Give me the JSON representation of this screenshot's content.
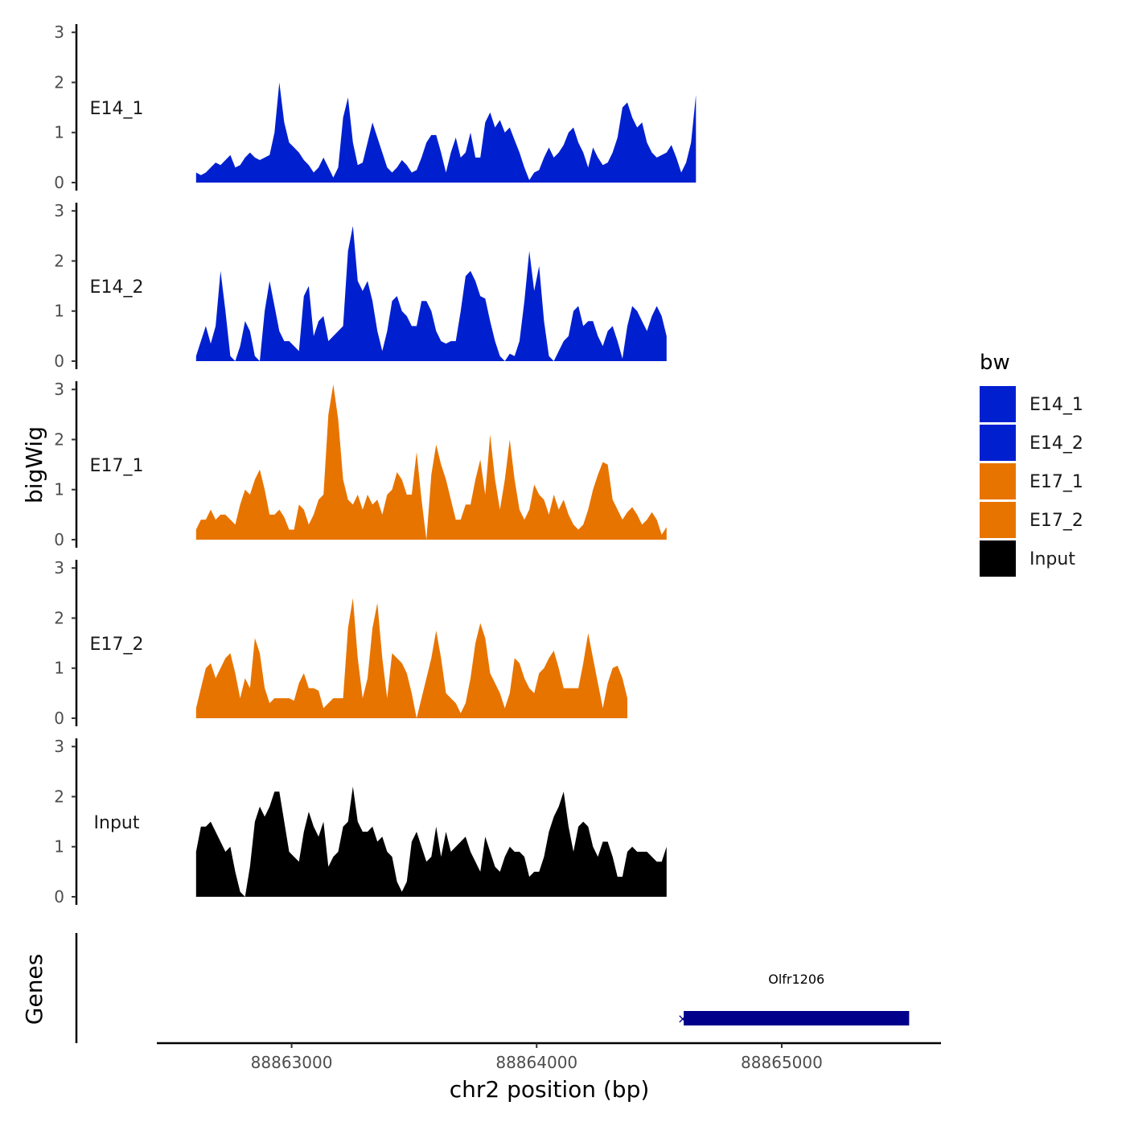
{
  "chart_data": {
    "type": "area",
    "xlabel": "chr2 position (bp)",
    "ylabel": "bigWig",
    "genes_label": "Genes",
    "xlim": [
      88862450,
      88865650
    ],
    "x_ticks": [
      88863000,
      88864000,
      88865000
    ],
    "x_tick_labels": [
      "88863000",
      "88864000",
      "88865000"
    ],
    "ylim": [
      0,
      3.1
    ],
    "y_ticks": [
      0,
      1,
      2,
      3
    ],
    "y_tick_labels": [
      "0",
      "1",
      "2",
      "3"
    ],
    "series_x_start": 88862610,
    "series_x_step": 20,
    "tracks": [
      {
        "name": "E14_1",
        "color": "#0020D0",
        "values": [
          0.2,
          0.15,
          0.2,
          0.3,
          0.4,
          0.35,
          0.45,
          0.55,
          0.3,
          0.35,
          0.5,
          0.6,
          0.5,
          0.45,
          0.5,
          0.55,
          1.0,
          2.0,
          1.2,
          0.8,
          0.7,
          0.6,
          0.45,
          0.35,
          0.2,
          0.3,
          0.5,
          0.3,
          0.1,
          0.3,
          1.3,
          1.7,
          0.8,
          0.35,
          0.4,
          0.8,
          1.2,
          0.9,
          0.6,
          0.3,
          0.2,
          0.3,
          0.45,
          0.35,
          0.2,
          0.25,
          0.5,
          0.8,
          0.95,
          0.95,
          0.6,
          0.2,
          0.6,
          0.9,
          0.5,
          0.6,
          1.0,
          0.5,
          0.5,
          1.2,
          1.4,
          1.1,
          1.25,
          1.0,
          1.1,
          0.85,
          0.6,
          0.3,
          0.05,
          0.2,
          0.25,
          0.5,
          0.7,
          0.5,
          0.6,
          0.75,
          1.0,
          1.1,
          0.8,
          0.6,
          0.3,
          0.7,
          0.5,
          0.35,
          0.4,
          0.6,
          0.9,
          1.5,
          1.6,
          1.3,
          1.1,
          1.2,
          0.8,
          0.6,
          0.5,
          0.55,
          0.6,
          0.75,
          0.5,
          0.2,
          0.4,
          0.8,
          1.75
        ]
      },
      {
        "name": "E14_2",
        "color": "#0020D0",
        "values": [
          0.1,
          0.4,
          0.7,
          0.35,
          0.7,
          1.8,
          1.0,
          0.1,
          0.0,
          0.3,
          0.8,
          0.6,
          0.1,
          0.0,
          1.0,
          1.6,
          1.1,
          0.6,
          0.4,
          0.4,
          0.3,
          0.2,
          1.3,
          1.5,
          0.5,
          0.8,
          0.9,
          0.4,
          0.5,
          0.6,
          0.7,
          2.2,
          2.7,
          1.6,
          1.4,
          1.6,
          1.2,
          0.6,
          0.2,
          0.6,
          1.2,
          1.3,
          1.0,
          0.9,
          0.7,
          0.7,
          1.2,
          1.2,
          1.0,
          0.6,
          0.4,
          0.35,
          0.4,
          0.4,
          1.0,
          1.7,
          1.8,
          1.6,
          1.3,
          1.25,
          0.8,
          0.4,
          0.1,
          0.0,
          0.15,
          0.1,
          0.4,
          1.2,
          2.2,
          1.4,
          1.9,
          0.8,
          0.1,
          0.0,
          0.2,
          0.4,
          0.5,
          1.0,
          1.1,
          0.7,
          0.8,
          0.8,
          0.5,
          0.3,
          0.6,
          0.7,
          0.4,
          0.05,
          0.7,
          1.1,
          1.0,
          0.8,
          0.6,
          0.9,
          1.1,
          0.9,
          0.5
        ]
      },
      {
        "name": "E17_1",
        "color": "#E87400",
        "values": [
          0.2,
          0.4,
          0.4,
          0.6,
          0.4,
          0.5,
          0.5,
          0.4,
          0.3,
          0.7,
          1.0,
          0.9,
          1.2,
          1.4,
          1.0,
          0.5,
          0.5,
          0.6,
          0.45,
          0.2,
          0.2,
          0.7,
          0.6,
          0.3,
          0.5,
          0.8,
          0.9,
          2.5,
          3.1,
          2.4,
          1.2,
          0.8,
          0.7,
          0.9,
          0.6,
          0.9,
          0.7,
          0.8,
          0.5,
          0.9,
          1.0,
          1.35,
          1.2,
          0.9,
          0.9,
          1.75,
          0.8,
          0.0,
          1.3,
          1.9,
          1.5,
          1.2,
          0.8,
          0.4,
          0.4,
          0.7,
          0.7,
          1.2,
          1.6,
          0.9,
          2.1,
          1.2,
          0.6,
          1.2,
          2.0,
          1.2,
          0.6,
          0.4,
          0.6,
          1.1,
          0.9,
          0.8,
          0.5,
          0.9,
          0.6,
          0.8,
          0.5,
          0.3,
          0.2,
          0.3,
          0.6,
          1.0,
          1.3,
          1.55,
          1.5,
          0.8,
          0.6,
          0.4,
          0.55,
          0.65,
          0.5,
          0.3,
          0.4,
          0.55,
          0.4,
          0.1,
          0.25
        ]
      },
      {
        "name": "E17_2",
        "color": "#E87400",
        "values": [
          0.2,
          0.6,
          1.0,
          1.1,
          0.8,
          1.0,
          1.2,
          1.3,
          0.9,
          0.4,
          0.8,
          0.6,
          1.6,
          1.3,
          0.6,
          0.3,
          0.4,
          0.4,
          0.4,
          0.4,
          0.35,
          0.7,
          0.9,
          0.6,
          0.6,
          0.55,
          0.2,
          0.3,
          0.4,
          0.4,
          0.4,
          1.8,
          2.4,
          1.2,
          0.4,
          0.8,
          1.8,
          2.3,
          1.2,
          0.4,
          1.3,
          1.2,
          1.1,
          0.9,
          0.5,
          0.0,
          0.4,
          0.8,
          1.2,
          1.75,
          1.2,
          0.5,
          0.4,
          0.3,
          0.1,
          0.3,
          0.8,
          1.5,
          1.9,
          1.6,
          0.9,
          0.7,
          0.5,
          0.2,
          0.5,
          1.2,
          1.1,
          0.8,
          0.6,
          0.5,
          0.9,
          1.0,
          1.2,
          1.35,
          1.0,
          0.6,
          0.6,
          0.6,
          0.6,
          1.1,
          1.7,
          1.2,
          0.7,
          0.2,
          0.7,
          1.0,
          1.05,
          0.8,
          0.4
        ]
      },
      {
        "name": "Input",
        "color": "#000000",
        "values": [
          0.9,
          1.4,
          1.4,
          1.5,
          1.3,
          1.1,
          0.9,
          1.0,
          0.5,
          0.1,
          0.0,
          0.6,
          1.5,
          1.8,
          1.6,
          1.8,
          2.1,
          2.1,
          1.5,
          0.9,
          0.8,
          0.7,
          1.3,
          1.7,
          1.4,
          1.2,
          1.5,
          0.6,
          0.8,
          0.9,
          1.4,
          1.5,
          2.2,
          1.5,
          1.3,
          1.3,
          1.4,
          1.1,
          1.2,
          0.9,
          0.8,
          0.3,
          0.1,
          0.3,
          1.1,
          1.3,
          1.0,
          0.7,
          0.8,
          1.4,
          0.8,
          1.3,
          0.9,
          1.0,
          1.1,
          1.2,
          0.9,
          0.7,
          0.5,
          1.2,
          0.9,
          0.6,
          0.5,
          0.8,
          1.0,
          0.9,
          0.9,
          0.8,
          0.4,
          0.5,
          0.5,
          0.8,
          1.3,
          1.6,
          1.8,
          2.1,
          1.4,
          0.9,
          1.4,
          1.5,
          1.4,
          1.0,
          0.8,
          1.1,
          1.1,
          0.8,
          0.4,
          0.4,
          0.9,
          1.0,
          0.9,
          0.9,
          0.9,
          0.8,
          0.7,
          0.7,
          1.0
        ]
      }
    ],
    "legend": {
      "title": "bw",
      "position": "right",
      "entries": [
        {
          "label": "E14_1",
          "color": "#0020D0"
        },
        {
          "label": "E14_2",
          "color": "#0020D0"
        },
        {
          "label": "E17_1",
          "color": "#E87400"
        },
        {
          "label": "E17_2",
          "color": "#E87400"
        },
        {
          "label": "Input",
          "color": "#000000"
        }
      ]
    },
    "genes": [
      {
        "name": "Olfr1206",
        "start": 88864600,
        "end": 88865520,
        "color": "#00008B"
      }
    ]
  }
}
